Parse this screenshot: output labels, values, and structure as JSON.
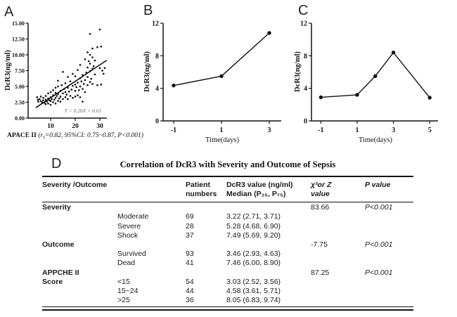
{
  "panels": {
    "a": "A",
    "b": "B",
    "c": "C"
  },
  "panel_a": {
    "equation_label": "Y = 0.26X + 0.61",
    "xlabel_parts": {
      "prefix": "APACE II ",
      "open": "(r",
      "sub": "s",
      "rest": "=0.82, 95%CI: 0.75~0.87, P<0.001)"
    }
  },
  "chart_data": [
    {
      "type": "scatter",
      "panel": "A",
      "ylabel": "DcR3(ng/ml)",
      "xlabel": "APACE II (rs=0.82, 95%CI: 0.75~0.87, P<0.001)",
      "ylim": [
        0,
        15
      ],
      "xlim": [
        3,
        34
      ],
      "yticks": [
        "0.00",
        "2.50",
        "5.00",
        "7.50",
        "10.00",
        "12.50",
        "15.00"
      ],
      "xticks": [
        10,
        20,
        30
      ],
      "regression": {
        "slope": 0.26,
        "intercept": 0.61,
        "label": "Y = 0.26X + 0.61",
        "x_start": 4,
        "x_end": 32.8
      },
      "points": [
        [
          4.5,
          3.3
        ],
        [
          4.8,
          2.9
        ],
        [
          5,
          2.6
        ],
        [
          5.5,
          3.0
        ],
        [
          6,
          2.7
        ],
        [
          6,
          3.4
        ],
        [
          6.5,
          2.5
        ],
        [
          7,
          2.8
        ],
        [
          7,
          3.2
        ],
        [
          7.5,
          2.4
        ],
        [
          8,
          2.2
        ],
        [
          8,
          2.9
        ],
        [
          8,
          3.5
        ],
        [
          8.5,
          2.6
        ],
        [
          9,
          2.3
        ],
        [
          9,
          3.1
        ],
        [
          9,
          3.9
        ],
        [
          9.5,
          2.8
        ],
        [
          10,
          2.1
        ],
        [
          10,
          2.7
        ],
        [
          10,
          3.3
        ],
        [
          10,
          4.1
        ],
        [
          10.5,
          3.0
        ],
        [
          11,
          2.5
        ],
        [
          11,
          3.6
        ],
        [
          11,
          4.4
        ],
        [
          11.5,
          2.9
        ],
        [
          12,
          2.3
        ],
        [
          12,
          3.2
        ],
        [
          12,
          4.0
        ],
        [
          12,
          4.8
        ],
        [
          12.5,
          3.5
        ],
        [
          13,
          2.7
        ],
        [
          13,
          3.8
        ],
        [
          13,
          5.0
        ],
        [
          13,
          5.9
        ],
        [
          13.5,
          3.1
        ],
        [
          14,
          2.6
        ],
        [
          14,
          3.4
        ],
        [
          14,
          4.3
        ],
        [
          14.5,
          5.2
        ],
        [
          15,
          3.0
        ],
        [
          15,
          3.9
        ],
        [
          15,
          7.3
        ],
        [
          15.5,
          4.6
        ],
        [
          16,
          3.3
        ],
        [
          16,
          4.1
        ],
        [
          16,
          5.5
        ],
        [
          16.5,
          3.7
        ],
        [
          17,
          3.0
        ],
        [
          17,
          4.8
        ],
        [
          17,
          6.5
        ],
        [
          17.5,
          4.2
        ],
        [
          18,
          3.5
        ],
        [
          18,
          5.8
        ],
        [
          18.5,
          4.5
        ],
        [
          19,
          3.2
        ],
        [
          19,
          5.1
        ],
        [
          19,
          7.0
        ],
        [
          20,
          3.4
        ],
        [
          20,
          4.3
        ],
        [
          20,
          5.3
        ],
        [
          20,
          6.6
        ],
        [
          20.5,
          4.9
        ],
        [
          21,
          3.6
        ],
        [
          21,
          5.6
        ],
        [
          21,
          7.6
        ],
        [
          21.5,
          4.4
        ],
        [
          22,
          3.3
        ],
        [
          22,
          5.0
        ],
        [
          22,
          6.3
        ],
        [
          22,
          8.4
        ],
        [
          22.5,
          5.8
        ],
        [
          23,
          2.6
        ],
        [
          23,
          4.6
        ],
        [
          23,
          6.8
        ],
        [
          23.5,
          5.4
        ],
        [
          24,
          4.1
        ],
        [
          24,
          6.0
        ],
        [
          24,
          9.3
        ],
        [
          24.5,
          7.2
        ],
        [
          25,
          5.2
        ],
        [
          25,
          6.5
        ],
        [
          25,
          8.0
        ],
        [
          25,
          10.4
        ],
        [
          25.5,
          9.0
        ],
        [
          26,
          5.7
        ],
        [
          26,
          7.4
        ],
        [
          26,
          8.6
        ],
        [
          26,
          10.0
        ],
        [
          26,
          13.3
        ],
        [
          26.5,
          6.2
        ],
        [
          27,
          5.4
        ],
        [
          27,
          7.8
        ],
        [
          27,
          9.6
        ],
        [
          27,
          11.0
        ],
        [
          27.5,
          8.2
        ],
        [
          28,
          6.9
        ],
        [
          28,
          9.1
        ],
        [
          29,
          5.2
        ],
        [
          29,
          11.2
        ],
        [
          30,
          7.9
        ],
        [
          30,
          14.0
        ],
        [
          30.5,
          11.3
        ],
        [
          30.5,
          5.3
        ],
        [
          31,
          7.5
        ],
        [
          31.5,
          7.0
        ],
        [
          32,
          7.9
        ]
      ]
    },
    {
      "type": "line",
      "panel": "B",
      "ylabel": "DcR3(ng/ml)",
      "xlabel": "Time(days)",
      "ylim": [
        0,
        12
      ],
      "yticks": [
        0,
        4,
        8,
        12
      ],
      "xticks": [
        -1,
        1,
        3
      ],
      "x": [
        -1,
        1,
        3
      ],
      "y": [
        4.35,
        5.5,
        10.8
      ]
    },
    {
      "type": "line",
      "panel": "C",
      "ylabel": "DcR3(ng/ml)",
      "xlabel": "Time(days)",
      "ylim": [
        0,
        12
      ],
      "yticks": [
        0,
        4,
        8,
        12
      ],
      "xticks": [
        -1,
        1,
        3,
        5
      ],
      "x": [
        -1,
        1,
        2,
        3,
        5
      ],
      "y": [
        2.9,
        3.2,
        5.5,
        8.4,
        2.85
      ]
    }
  ],
  "table": {
    "panel_letter": "D",
    "title": "Correlation of DcR3 with Severity and Outcome of Sepsis",
    "headers": [
      "Severity /Outcome",
      "",
      "Patient\nnumbers",
      "DcR3 value (ng/ml)\nMedian (P₂₅, P₇₅)",
      "χ²or Z\nvalue",
      "P value"
    ],
    "rows": [
      [
        "Severity",
        "",
        "",
        "",
        "83.66",
        "P<0.001"
      ],
      [
        "",
        "Moderate",
        "69",
        "3.22 (2.71, 3.71)",
        "",
        ""
      ],
      [
        "",
        "Severe",
        "28",
        "5.28 (4.68, 6.90)",
        "",
        ""
      ],
      [
        "",
        "Shock",
        "37",
        "7.49 (5.69, 9.20)",
        "",
        ""
      ],
      [
        "Outcome",
        "",
        "",
        "",
        "-7.75",
        "P<0.001"
      ],
      [
        "",
        "Survived",
        "93",
        "3.46 (2.93, 4.63)",
        "",
        ""
      ],
      [
        "",
        "Dead",
        "41",
        "7.46 (6.00, 8.90)",
        "",
        ""
      ],
      [
        "APPCHE II",
        "",
        "",
        "",
        "87.25",
        "P<0.001"
      ],
      [
        "Score",
        "<15",
        "54",
        "3.03 (2.52, 3.56)",
        "",
        ""
      ],
      [
        "",
        "15~24",
        "44",
        "4.58 (3.61, 5.71)",
        "",
        ""
      ],
      [
        "",
        ">25",
        "36",
        "8.05 (6.83, 9.74)",
        "",
        ""
      ]
    ]
  },
  "colors": {
    "ink": "#111111",
    "equation_gray": "#666666",
    "background": "#ffffff"
  }
}
